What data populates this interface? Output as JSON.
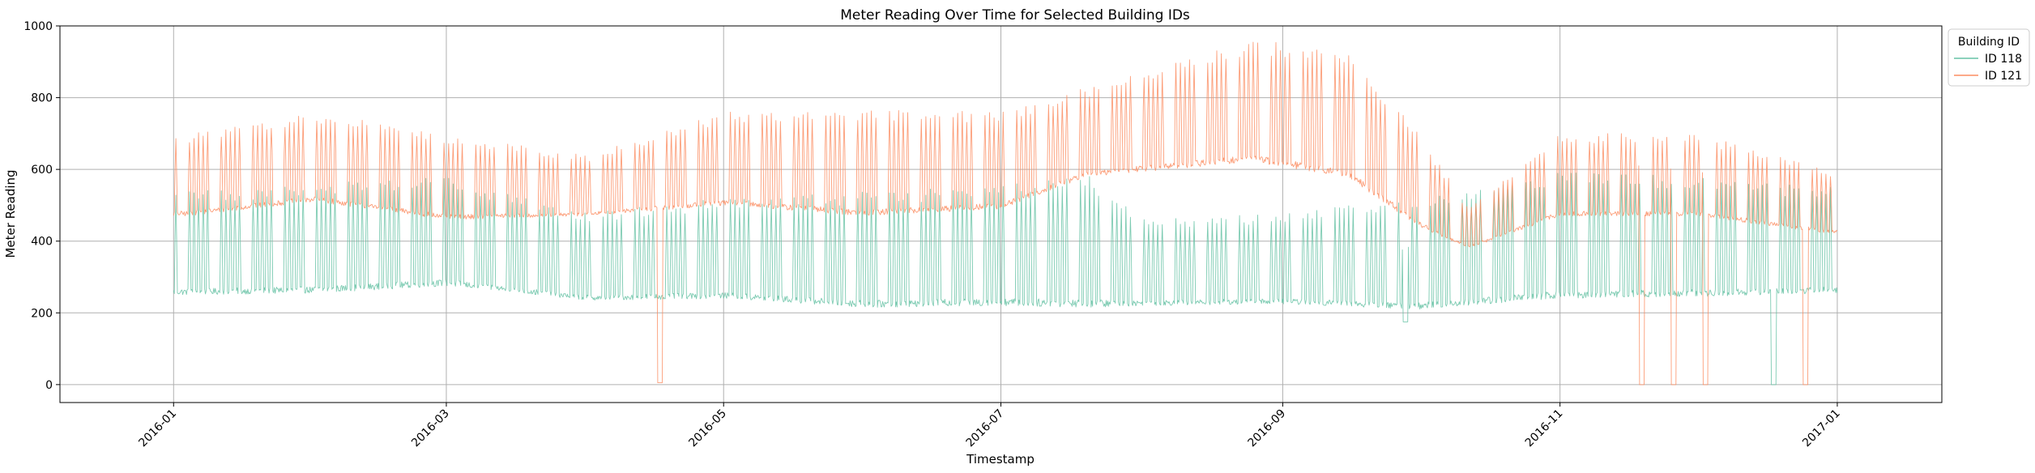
{
  "chart_data": {
    "type": "line",
    "title": "Meter Reading Over Time for Selected Building IDs",
    "xlabel": "Timestamp",
    "ylabel": "Meter Reading",
    "xlim": [
      "2015-12-07",
      "2017-01-24"
    ],
    "ylim": [
      -50,
      1000
    ],
    "xticks": [
      "2016-01",
      "2016-03",
      "2016-05",
      "2016-07",
      "2016-09",
      "2016-11",
      "2017-01"
    ],
    "yticks": [
      0,
      200,
      400,
      600,
      800,
      1000
    ],
    "grid": true,
    "legend": {
      "title": "Building ID",
      "placement": "outside-top-right"
    },
    "series": [
      {
        "name": "ID 118",
        "color": "#66c2a5",
        "x_start": "2016-01-01",
        "interval_hours": 1,
        "weekly_points": [
          {
            "x": "2016-01-04",
            "base": 250,
            "peak": 540
          },
          {
            "x": "2016-02-01",
            "base": 255,
            "peak": 560
          },
          {
            "x": "2016-03-01",
            "base": 275,
            "peak": 580
          },
          {
            "x": "2016-04-01",
            "base": 235,
            "peak": 480
          },
          {
            "x": "2016-05-01",
            "base": 240,
            "peak": 520
          },
          {
            "x": "2016-06-01",
            "base": 215,
            "peak": 540
          },
          {
            "x": "2016-07-01",
            "base": 220,
            "peak": 560
          },
          {
            "x": "2016-07-20",
            "base": 215,
            "peak": 590
          },
          {
            "x": "2016-08-01",
            "base": 220,
            "peak": 460
          },
          {
            "x": "2016-09-01",
            "base": 225,
            "peak": 480
          },
          {
            "x": "2016-10-01",
            "base": 210,
            "peak": 520
          },
          {
            "x": "2016-11-01",
            "base": 240,
            "peak": 600
          },
          {
            "x": "2016-12-01",
            "base": 245,
            "peak": 580
          },
          {
            "x": "2016-12-31",
            "base": 255,
            "peak": 550
          }
        ],
        "dropouts": [
          {
            "x": "2016-09-28",
            "value": 175
          },
          {
            "x": "2016-12-18",
            "value": 0
          }
        ]
      },
      {
        "name": "ID 121",
        "color": "#fc8d62",
        "x_start": "2016-01-01",
        "interval_hours": 1,
        "weekly_points": [
          {
            "x": "2016-01-04",
            "base": 470,
            "peak": 700
          },
          {
            "x": "2016-02-01",
            "base": 510,
            "peak": 760
          },
          {
            "x": "2016-03-01",
            "base": 460,
            "peak": 700
          },
          {
            "x": "2016-04-01",
            "base": 470,
            "peak": 640
          },
          {
            "x": "2016-05-01",
            "base": 500,
            "peak": 760
          },
          {
            "x": "2016-06-01",
            "base": 470,
            "peak": 770
          },
          {
            "x": "2016-07-01",
            "base": 490,
            "peak": 760
          },
          {
            "x": "2016-07-20",
            "base": 580,
            "peak": 830
          },
          {
            "x": "2016-08-25",
            "base": 620,
            "peak": 960
          },
          {
            "x": "2016-09-15",
            "base": 580,
            "peak": 940
          },
          {
            "x": "2016-10-01",
            "base": 440,
            "peak": 700
          },
          {
            "x": "2016-10-12",
            "base": 380,
            "peak": 490
          },
          {
            "x": "2016-11-01",
            "base": 470,
            "peak": 700
          },
          {
            "x": "2016-12-01",
            "base": 470,
            "peak": 700
          },
          {
            "x": "2016-12-31",
            "base": 420,
            "peak": 600
          }
        ],
        "dropouts": [
          {
            "x": "2016-04-17",
            "value": 5
          },
          {
            "x": "2016-11-19",
            "value": 0
          },
          {
            "x": "2016-11-26",
            "value": 0
          },
          {
            "x": "2016-12-03",
            "value": 0
          },
          {
            "x": "2016-12-25",
            "value": 0
          }
        ]
      }
    ]
  }
}
